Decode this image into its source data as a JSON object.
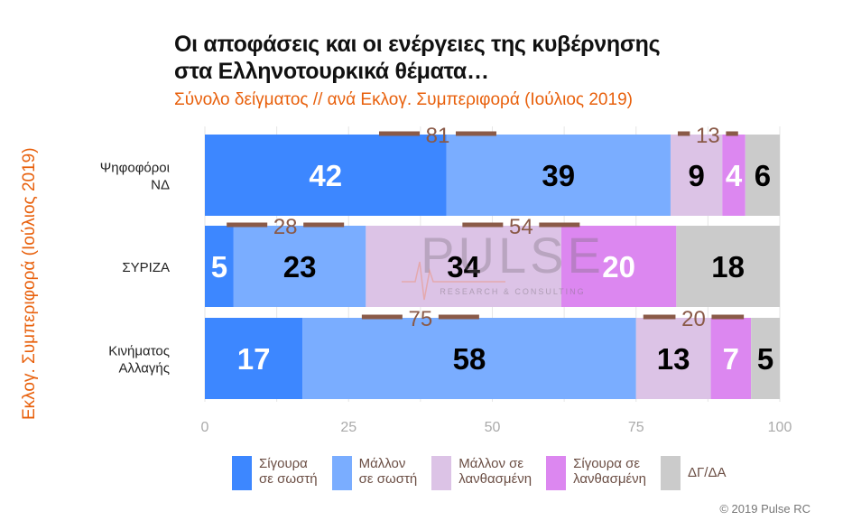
{
  "chart_data": {
    "type": "bar",
    "orientation": "horizontal",
    "stacked": true,
    "title_line1": "Οι αποφάσεις και οι ενέργειες της κυβέρνησης",
    "title_line2": "στα Ελληνοτουρκικά θέματα…",
    "subtitle": "Σύνολο δείγματος // ανά Εκλογ. Συμπεριφορά (Ιούλιος 2019)",
    "ylabel": "Εκλογ. Συμπεριφορά (Ιούλιος 2019)",
    "xlim": [
      0,
      100
    ],
    "xticks": [
      "0",
      "25",
      "50",
      "75",
      "100"
    ],
    "grid": true,
    "legend_position": "bottom",
    "categories": [
      "Ψηφοφόροι\nΝΔ",
      "ΣΥΡΙΖΑ",
      "Κινήματος\nΑλλαγής"
    ],
    "series": [
      {
        "name": "Σίγουρα\nσε σωστή",
        "color": "#3d87ff",
        "label_color": "#ffffff",
        "values": [
          42,
          5,
          17
        ]
      },
      {
        "name": "Μάλλον\nσε σωστή",
        "color": "#7aadff",
        "label_color": "#000000",
        "values": [
          39,
          23,
          58
        ]
      },
      {
        "name": "Μάλλον σε\nλανθασμένη",
        "color": "#dcc3e6",
        "label_color": "#000000",
        "values": [
          9,
          34,
          13
        ]
      },
      {
        "name": "Σίγουρα σε\nλανθασμένη",
        "color": "#dc87f0",
        "label_color": "#ffffff",
        "values": [
          4,
          20,
          7
        ]
      },
      {
        "name": "ΔΓ/ΔΑ",
        "color": "#cbcbcb",
        "label_color": "#000000",
        "values": [
          6,
          18,
          5
        ]
      }
    ],
    "group_totals": [
      {
        "correct": "81",
        "wrong": "13"
      },
      {
        "correct": "28",
        "wrong": "54"
      },
      {
        "correct": "75",
        "wrong": "20"
      }
    ],
    "annotation_color": "#8a5a48"
  },
  "watermark": {
    "name": "PULSE",
    "tagline": "RESEARCH & CONSULTING"
  },
  "credit": "© 2019 Pulse RC"
}
